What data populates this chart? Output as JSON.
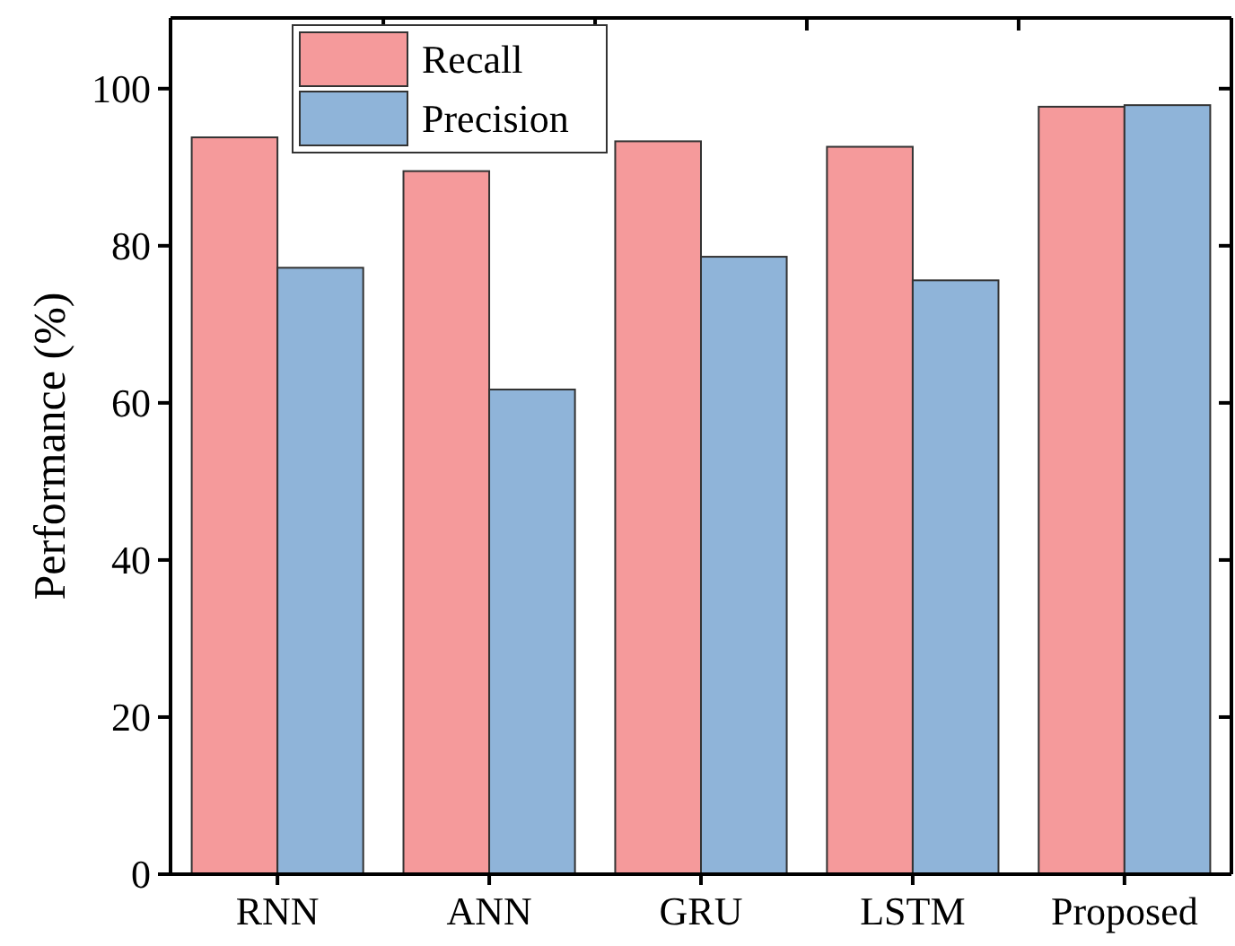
{
  "chart_data": {
    "type": "bar",
    "ylabel": "Performance (%)",
    "categories": [
      "RNN",
      "ANN",
      "GRU",
      "LSTM",
      "Proposed"
    ],
    "series": [
      {
        "name": "Recall",
        "color": "#f59a9b",
        "values": [
          93.8,
          89.5,
          93.3,
          92.6,
          97.7
        ]
      },
      {
        "name": "Precision",
        "color": "#8fb4d9",
        "values": [
          77.2,
          61.7,
          78.6,
          75.6,
          97.9
        ]
      }
    ],
    "ylim": [
      0,
      109
    ],
    "yticks": [
      0,
      20,
      40,
      60,
      80,
      100
    ],
    "legend": "top left",
    "grid": false
  }
}
